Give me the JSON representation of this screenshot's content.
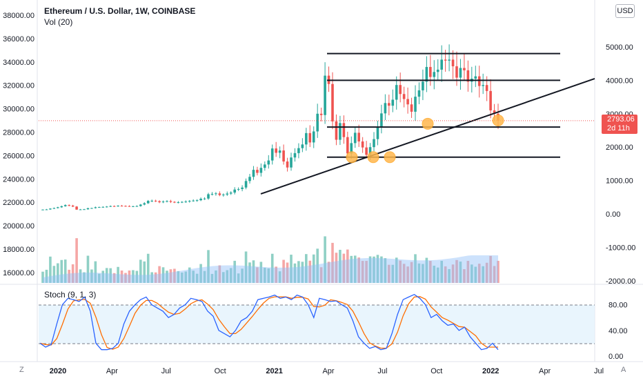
{
  "header": {
    "title": "Ethereum / U.S. Dollar, 1W, COINBASE",
    "volume_label": "Vol (20)"
  },
  "currency_button": "USD",
  "price_badge": {
    "price": "2793.06",
    "countdown": "2d 11h"
  },
  "stoch_label": "Stoch (9, 1, 3)",
  "corner_buttons": {
    "left": "Z",
    "right": "A"
  },
  "chart_data": {
    "type": "candlestick",
    "title": "Ethereum / U.S. Dollar, 1W, COINBASE",
    "price_axis_left": {
      "ticks": [
        "38000.00",
        "36000.00",
        "34000.00",
        "32000.00",
        "30000.00",
        "28000.00",
        "26000.00",
        "24000.00",
        "22000.00",
        "20000.00",
        "18000.00",
        "16000.00"
      ]
    },
    "price_axis_right": {
      "ticks": [
        "5000.00",
        "4000.00",
        "3000.00",
        "2000.00",
        "1000.00",
        "0.00",
        "-1000.00",
        "-2000.00"
      ],
      "last_price": 2793.06
    },
    "stoch_axis": {
      "ticks": [
        "80.00",
        "40.00",
        "0.00"
      ],
      "bands": [
        20,
        80
      ]
    },
    "x_axis": {
      "ticks": [
        "2020",
        "Apr",
        "Jul",
        "Oct",
        "2021",
        "Apr",
        "Jul",
        "Oct",
        "2022",
        "Apr",
        "Jul"
      ]
    },
    "horizontal_levels": [
      4800,
      4000,
      2600,
      1700
    ],
    "trendline": {
      "from": [
        "2020-12",
        600
      ],
      "to": [
        "2022-07",
        4050
      ]
    },
    "highlight_points": [
      "2021-05 ~1700",
      "2021-06 ~1700",
      "2021-07 ~1700",
      "2021-09 ~2750",
      "2022-01 ~2800"
    ],
    "price_series": {
      "weekly_close": [
        130,
        135,
        160,
        175,
        200,
        230,
        265,
        250,
        220,
        130,
        135,
        140,
        170,
        175,
        200,
        205,
        210,
        220,
        235,
        230,
        245,
        240,
        235,
        225,
        230,
        235,
        280,
        320,
        390,
        395,
        380,
        350,
        370,
        385,
        360,
        345,
        350,
        360,
        370,
        390,
        400,
        410,
        455,
        460,
        590,
        600,
        615,
        565,
        580,
        610,
        640,
        730,
        745,
        790,
        985,
        1110,
        1320,
        1230,
        1380,
        1480,
        1600,
        1960,
        1830,
        1900,
        1570,
        1390,
        1690,
        1820,
        1970,
        2080,
        2420,
        2140,
        2470,
        3000,
        2960,
        4140,
        3890,
        2770,
        2220,
        2720,
        2300,
        1810,
        2120,
        2430,
        2170,
        1990,
        1770,
        2000,
        2240,
        2610,
        3010,
        3320,
        3240,
        3420,
        3860,
        3590,
        3440,
        3280,
        3060,
        3510,
        3700,
        3960,
        4400,
        4100,
        4250,
        4320,
        4620,
        4590,
        4620,
        4420,
        4080,
        4370,
        4300,
        3960,
        4050,
        4120,
        3830,
        3860,
        3680,
        3100,
        3000,
        2793
      ]
    },
    "volume": {
      "label": "Vol (20)"
    },
    "stochastic": {
      "label": "Stoch (9, 1, 3)",
      "k": [
        20,
        14,
        18,
        50,
        80,
        90,
        88,
        85,
        92,
        70,
        20,
        10,
        10,
        12,
        20,
        50,
        70,
        80,
        88,
        92,
        80,
        75,
        70,
        60,
        65,
        75,
        80,
        90,
        88,
        85,
        70,
        62,
        40,
        35,
        30,
        40,
        55,
        60,
        70,
        88,
        90,
        92,
        95,
        90,
        92,
        88,
        95,
        92,
        80,
        60,
        90,
        88,
        85,
        86,
        80,
        75,
        55,
        30,
        20,
        12,
        15,
        10,
        12,
        35,
        65,
        88,
        92,
        96,
        90,
        80,
        60,
        65,
        55,
        48,
        50,
        40,
        45,
        30,
        20,
        10,
        12,
        20,
        10
      ]
    }
  }
}
